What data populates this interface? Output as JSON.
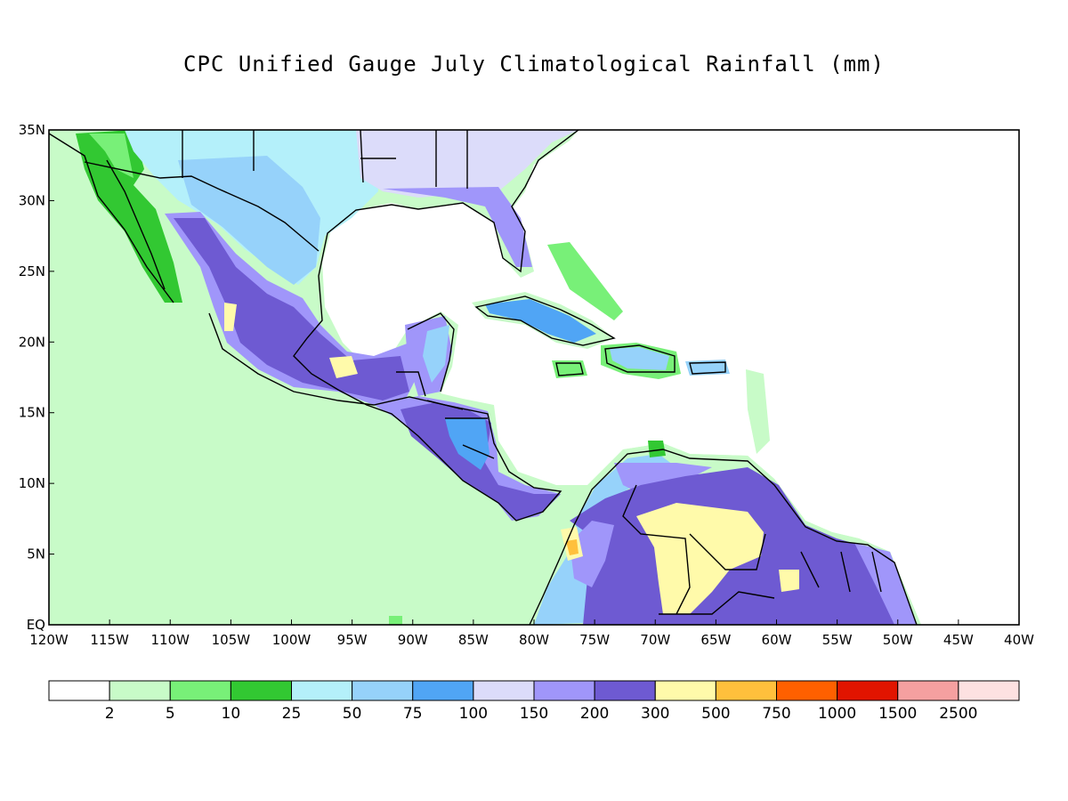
{
  "title": "CPC Unified Gauge July Climatological Rainfall (mm)",
  "map": {
    "lon_range": [
      -120,
      -40
    ],
    "lat_range": [
      0,
      35
    ],
    "lon_ticks": [
      "120W",
      "115W",
      "110W",
      "105W",
      "100W",
      "95W",
      "90W",
      "85W",
      "80W",
      "75W",
      "70W",
      "65W",
      "60W",
      "55W",
      "50W",
      "45W",
      "40W"
    ],
    "lat_ticks": [
      "EQ",
      "5N",
      "10N",
      "15N",
      "20N",
      "25N",
      "30N",
      "35N"
    ],
    "colors": {
      "c0": "#ffffff",
      "c2": "#c8fbc8",
      "c5": "#78f078",
      "c10": "#32c832",
      "c25": "#b4f0fa",
      "c50": "#96d2fa",
      "c75": "#50a5f5",
      "c100": "#dcdcfa",
      "c150": "#a096fa",
      "c200": "#6e5ad2",
      "c300": "#fffaaa",
      "c500": "#ffc03c",
      "c750": "#ff6000",
      "c1000": "#e11400",
      "c1500": "#f5a0a0",
      "c2500": "#fde1e1"
    }
  },
  "colorbar": {
    "colors": [
      "#ffffff",
      "#c8fbc8",
      "#78f078",
      "#32c832",
      "#b4f0fa",
      "#96d2fa",
      "#50a5f5",
      "#dcdcfa",
      "#a096fa",
      "#6e5ad2",
      "#fffaaa",
      "#ffc03c",
      "#ff6000",
      "#e11400",
      "#f5a0a0",
      "#fde1e1"
    ],
    "labels": [
      "2",
      "5",
      "10",
      "25",
      "50",
      "75",
      "100",
      "150",
      "200",
      "300",
      "500",
      "750",
      "1000",
      "1500",
      "2500"
    ]
  }
}
